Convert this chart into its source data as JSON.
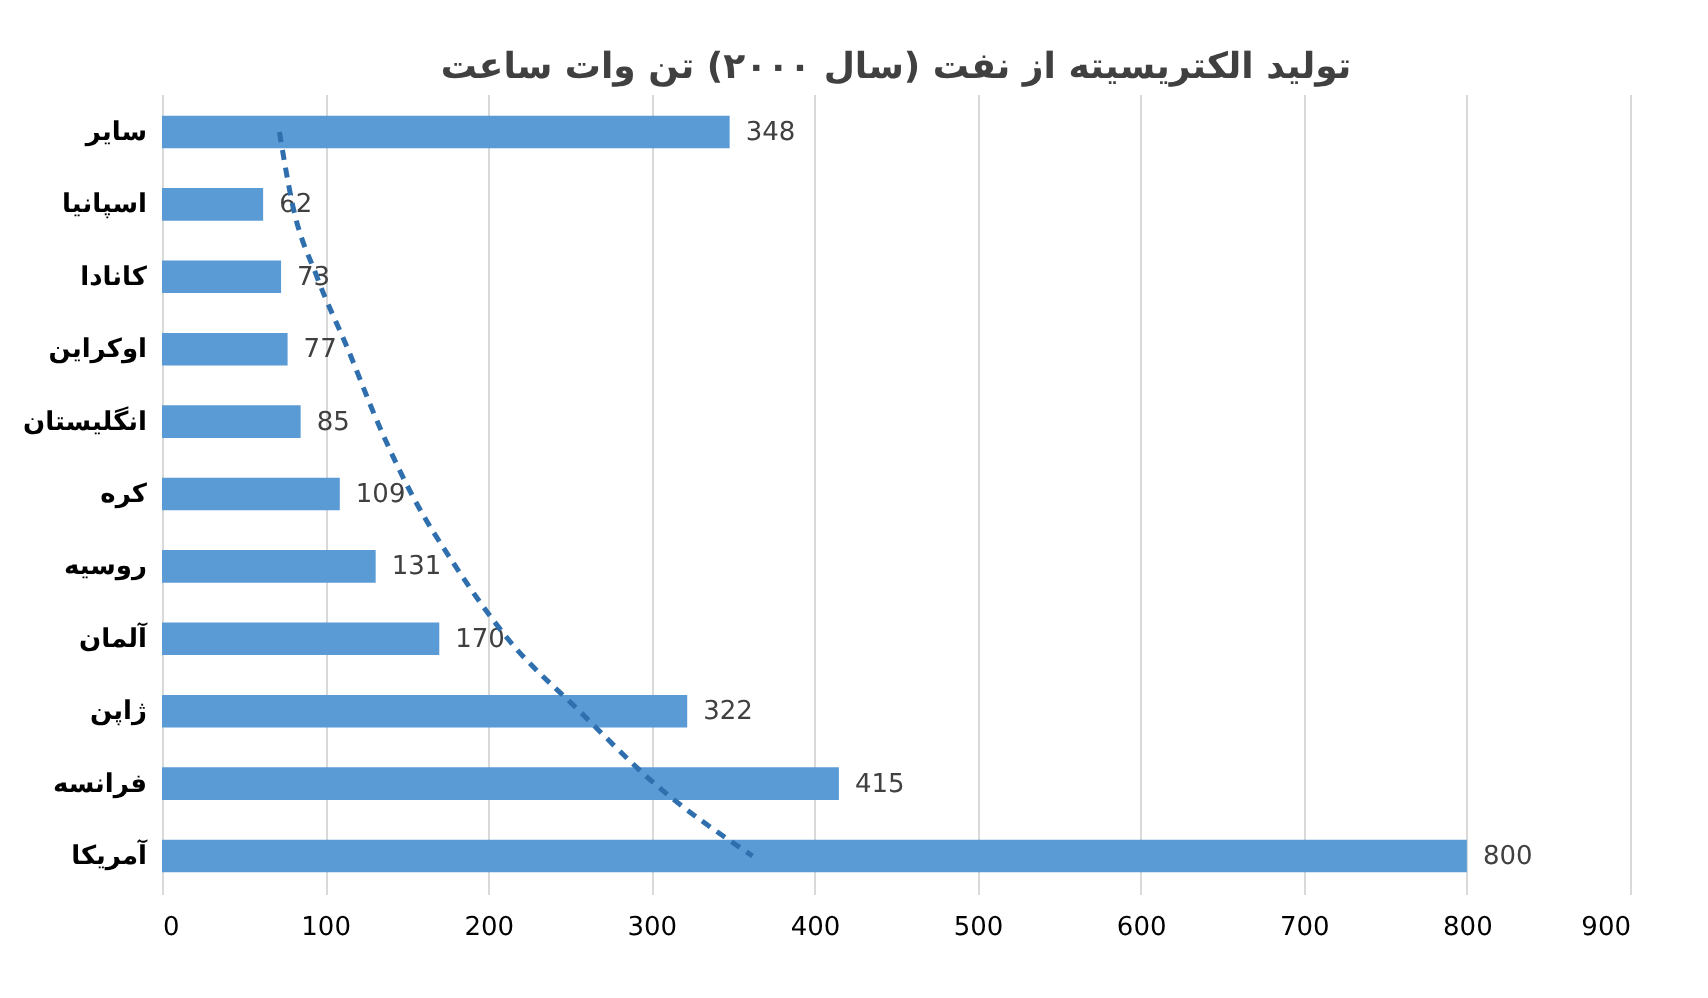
{
  "chart_data": {
    "type": "bar",
    "orientation": "horizontal",
    "title": "تولید الکتریسیته از نفت (سال ۲۰۰۰) تن وات ساعت",
    "categories": [
      "سایر",
      "اسپانیا",
      "کانادا",
      "اوکراین",
      "انگلیستان",
      "کره",
      "روسیه",
      "آلمان",
      "ژاپن",
      "فرانسه",
      "آمریکا"
    ],
    "series": [
      {
        "color": "#5b9bd5",
        "values": [
          348,
          62,
          73,
          77,
          85,
          109,
          131,
          170,
          322,
          415,
          800
        ],
        "value_labels": [
          "348",
          "62",
          "73",
          "77",
          "85",
          "109",
          "131",
          "170",
          "322",
          "415",
          "800"
        ]
      },
      {
        "type": "line",
        "line_style": "dashed",
        "color": "#2f6fae",
        "values": [
          72,
          80,
          95,
          114,
          132,
          153,
          180,
          212,
          256,
          302,
          362
        ]
      }
    ],
    "xlim": [
      0,
      900
    ],
    "xticks": [
      0,
      100,
      200,
      300,
      400,
      500,
      600,
      700,
      800,
      900
    ],
    "grid": "x"
  }
}
